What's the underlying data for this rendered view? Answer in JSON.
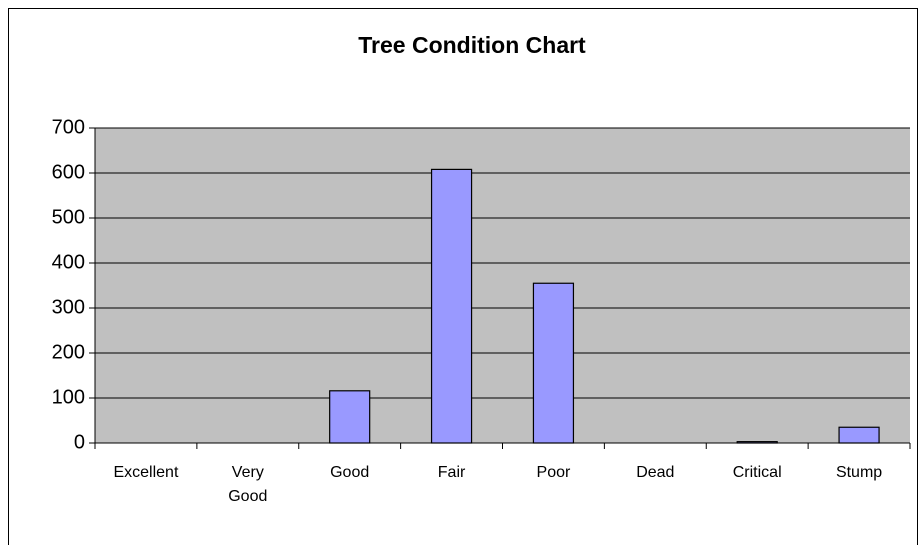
{
  "chart_data": {
    "type": "bar",
    "title": "Tree Condition Chart",
    "categories": [
      "Excellent",
      "Very Good",
      "Good",
      "Fair",
      "Poor",
      "Dead",
      "Critical",
      "Stump"
    ],
    "values": [
      0,
      0,
      116,
      608,
      355,
      0,
      3,
      35
    ],
    "color": "#9999ff",
    "ylim": [
      0,
      700
    ],
    "yticks": [
      0,
      100,
      200,
      300,
      400,
      500,
      600,
      700
    ],
    "grid": true
  }
}
